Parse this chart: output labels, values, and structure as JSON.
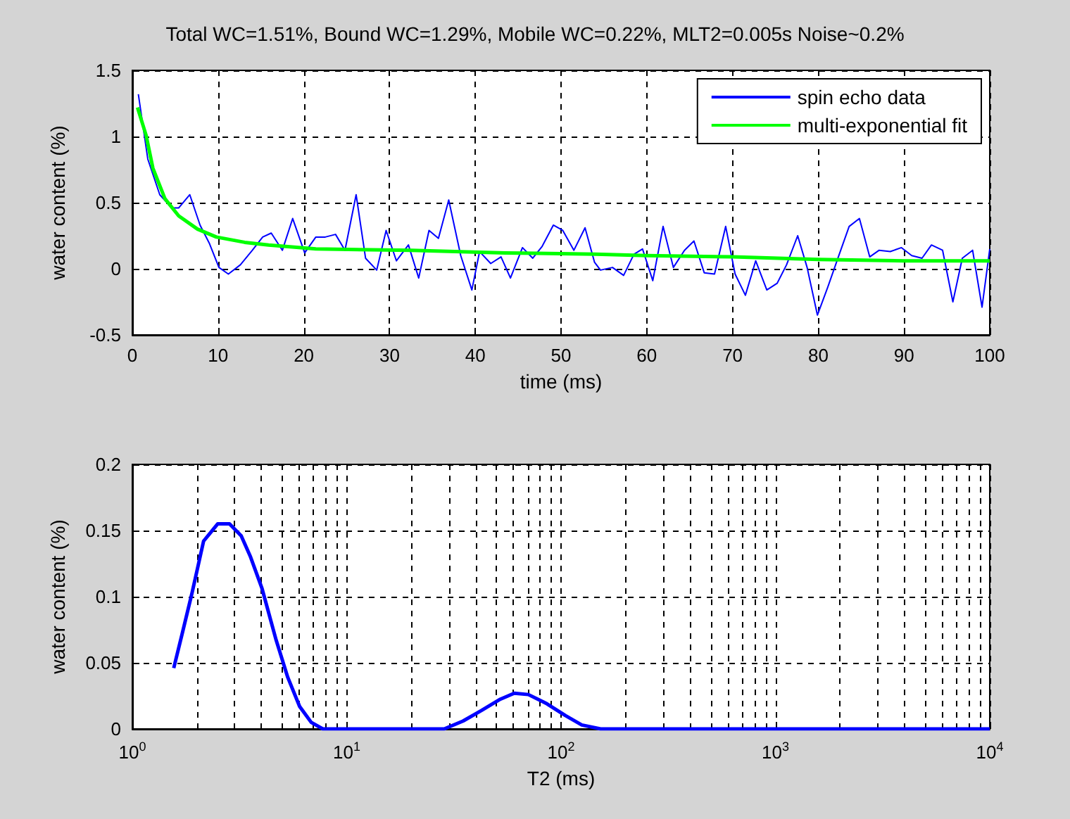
{
  "chart_data": [
    {
      "type": "line",
      "title": "Total WC=1.51%, Bound WC=1.29%, Mobile WC=0.22%, MLT2=0.005s Noise~0.2%",
      "xlabel": "time (ms)",
      "ylabel": "water content (%)",
      "xlim": [
        0,
        100
      ],
      "ylim": [
        -0.5,
        1.5
      ],
      "xticks": [
        0,
        10,
        20,
        30,
        40,
        50,
        60,
        70,
        80,
        90,
        100
      ],
      "yticks": [
        -0.5,
        0,
        0.5,
        1,
        1.5
      ],
      "grid": true,
      "legend": "top right",
      "series": [
        {
          "name": "spin echo data",
          "color": "#0000ff",
          "x": [
            0.7,
            1.8,
            3.2,
            4.6,
            5.4,
            6.7,
            7.9,
            9.0,
            10.1,
            11.2,
            12.6,
            14.0,
            15.2,
            16.2,
            17.5,
            18.7,
            20.1,
            21.4,
            22.5,
            23.7,
            24.8,
            26.1,
            27.2,
            28.5,
            29.6,
            30.8,
            32.2,
            33.4,
            34.6,
            35.7,
            36.9,
            38.3,
            39.6,
            40.5,
            41.8,
            43.0,
            44.1,
            45.5,
            46.7,
            47.8,
            49.1,
            50.2,
            51.5,
            52.8,
            53.9,
            54.6,
            56.0,
            57.3,
            58.5,
            59.5,
            60.7,
            61.9,
            63.1,
            64.4,
            65.5,
            66.7,
            67.9,
            69.2,
            70.3,
            71.5,
            72.7,
            74.0,
            75.2,
            76.3,
            77.6,
            78.7,
            79.9,
            81.1,
            82.4,
            83.6,
            84.8,
            86.0,
            87.1,
            88.4,
            89.7,
            90.9,
            92.1,
            93.2,
            94.5,
            95.7,
            96.8,
            98.0,
            99.1,
            100
          ],
          "values": [
            1.32,
            0.83,
            0.56,
            0.46,
            0.46,
            0.56,
            0.33,
            0.19,
            0.01,
            -0.04,
            0.03,
            0.14,
            0.24,
            0.27,
            0.14,
            0.38,
            0.12,
            0.24,
            0.24,
            0.26,
            0.14,
            0.56,
            0.08,
            -0.01,
            0.29,
            0.06,
            0.18,
            -0.07,
            0.29,
            0.23,
            0.52,
            0.1,
            -0.16,
            0.13,
            0.04,
            0.09,
            -0.07,
            0.16,
            0.08,
            0.17,
            0.33,
            0.29,
            0.14,
            0.31,
            0.05,
            -0.01,
            0.01,
            -0.05,
            0.11,
            0.15,
            -0.09,
            0.32,
            0.01,
            0.14,
            0.21,
            -0.03,
            -0.04,
            0.32,
            -0.04,
            -0.2,
            0.06,
            -0.16,
            -0.11,
            0.03,
            0.25,
            0.01,
            -0.35,
            -0.14,
            0.1,
            0.32,
            0.38,
            0.09,
            0.14,
            0.13,
            0.16,
            0.1,
            0.08,
            0.18,
            0.14,
            -0.25,
            0.08,
            0.14,
            -0.29,
            0.15
          ]
        },
        {
          "name": "multi-exponential fit",
          "color": "#00ff00",
          "x": [
            0.6,
            1.6,
            2.4,
            3.8,
            5.4,
            7.6,
            9.8,
            13.1,
            15.9,
            21.4,
            32.5,
            43.5,
            54,
            60,
            70,
            80,
            90,
            100
          ],
          "values": [
            1.22,
            1.01,
            0.76,
            0.53,
            0.4,
            0.3,
            0.24,
            0.2,
            0.18,
            0.15,
            0.14,
            0.12,
            0.11,
            0.1,
            0.09,
            0.07,
            0.06,
            0.06
          ]
        }
      ]
    },
    {
      "type": "line",
      "xlabel": "T2 (ms)",
      "ylabel": "water content (%)",
      "log": "x",
      "xlim": [
        1,
        10000
      ],
      "ylim": [
        0,
        0.2
      ],
      "xticks": [
        {
          "value": 1,
          "label": "10$^{0}$"
        },
        {
          "value": 10,
          "label": "10$^{1}$"
        },
        {
          "value": 100,
          "label": "10$^{2}$"
        },
        {
          "value": 1000,
          "label": "10$^{3}$"
        },
        {
          "value": 10000,
          "label": "10$^{4}$"
        }
      ],
      "yticks": [
        0,
        0.05,
        0.1,
        0.15,
        0.2
      ],
      "grid": true,
      "series": [
        {
          "color": "#0000ff",
          "x": [
            1.56,
            1.72,
            1.9,
            2.15,
            2.5,
            2.84,
            3.22,
            3.56,
            4.03,
            4.69,
            5.31,
            6.03,
            6.83,
            7.74,
            28.5,
            34.9,
            42.6,
            52.1,
            60.5,
            70.4,
            86,
            105,
            125,
            153,
            1000,
            10000
          ],
          "values": [
            0.046,
            0.074,
            0.103,
            0.142,
            0.155,
            0.155,
            0.146,
            0.13,
            0.106,
            0.067,
            0.039,
            0.017,
            0.005,
            0,
            0,
            0.006,
            0.014,
            0.0225,
            0.027,
            0.026,
            0.019,
            0.01,
            0.003,
            0,
            0,
            0
          ]
        }
      ]
    }
  ]
}
